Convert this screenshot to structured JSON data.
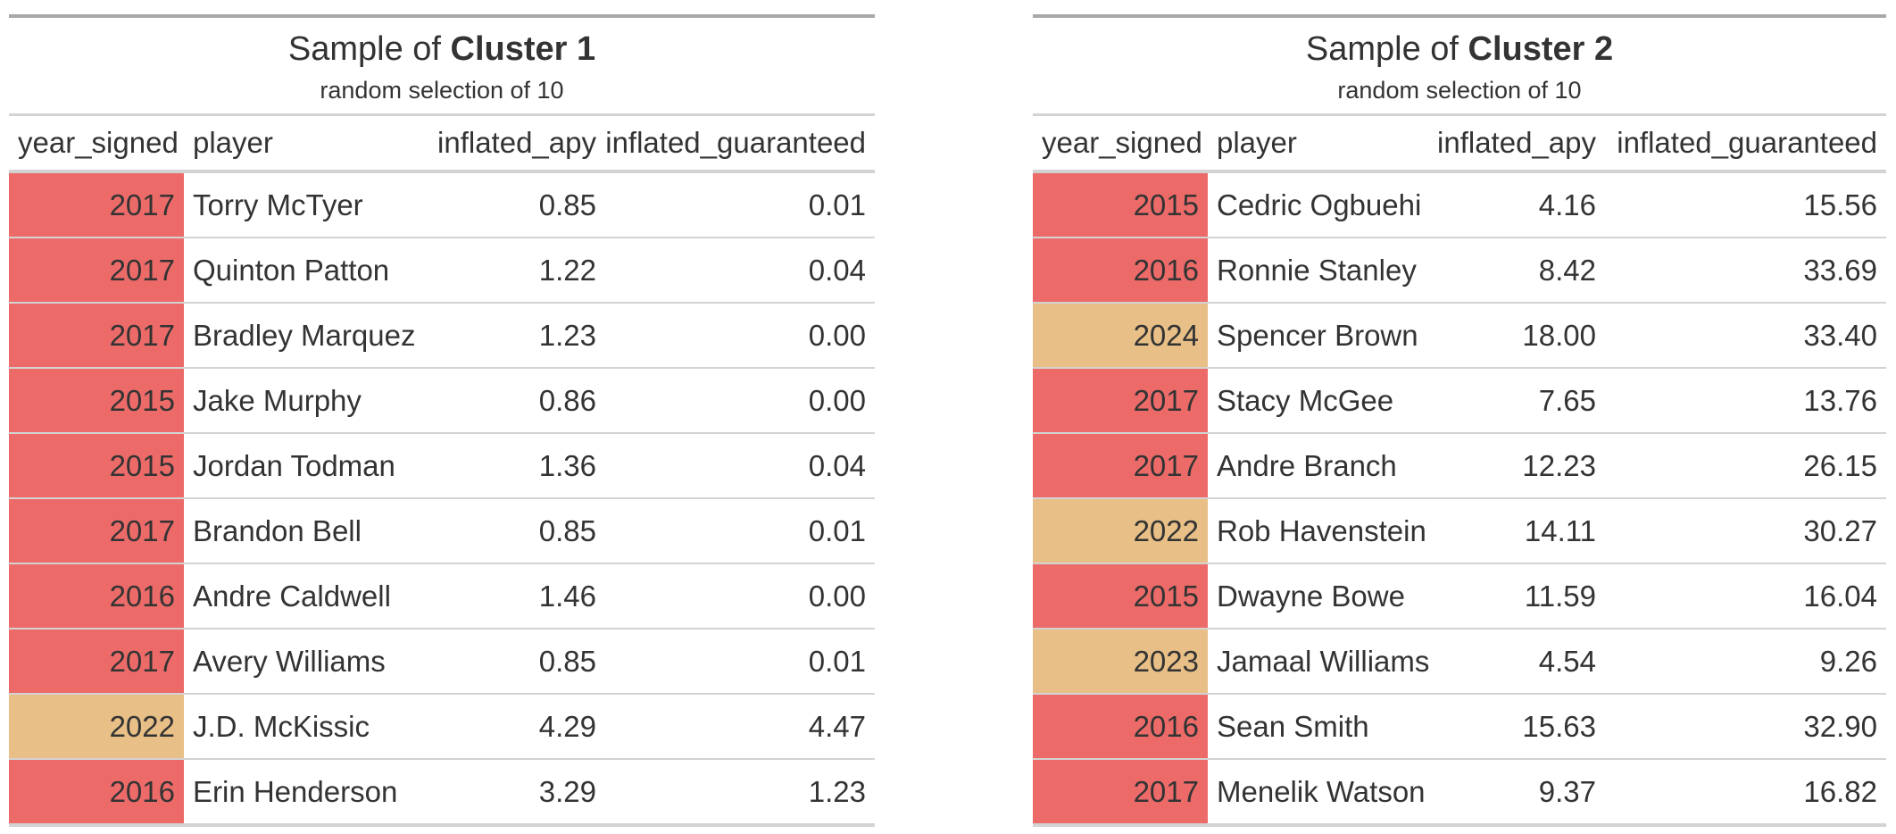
{
  "tables": [
    {
      "title_prefix": "Sample of ",
      "title_bold": "Cluster 1",
      "subtitle": "random selection of 10",
      "columns": [
        "year_signed",
        "player",
        "inflated_apy",
        "inflated_guaranteed"
      ],
      "rows": [
        {
          "year_signed": "2017",
          "player": "Torry McTyer",
          "inflated_apy": "0.85",
          "inflated_guaranteed": "0.01",
          "color": "#ec6b69"
        },
        {
          "year_signed": "2017",
          "player": "Quinton Patton",
          "inflated_apy": "1.22",
          "inflated_guaranteed": "0.04",
          "color": "#ec6b69"
        },
        {
          "year_signed": "2017",
          "player": "Bradley Marquez",
          "inflated_apy": "1.23",
          "inflated_guaranteed": "0.00",
          "color": "#ec6b69"
        },
        {
          "year_signed": "2015",
          "player": "Jake Murphy",
          "inflated_apy": "0.86",
          "inflated_guaranteed": "0.00",
          "color": "#ec6b69"
        },
        {
          "year_signed": "2015",
          "player": "Jordan Todman",
          "inflated_apy": "1.36",
          "inflated_guaranteed": "0.04",
          "color": "#ec6b69"
        },
        {
          "year_signed": "2017",
          "player": "Brandon Bell",
          "inflated_apy": "0.85",
          "inflated_guaranteed": "0.01",
          "color": "#ec6b69"
        },
        {
          "year_signed": "2016",
          "player": "Andre Caldwell",
          "inflated_apy": "1.46",
          "inflated_guaranteed": "0.00",
          "color": "#ec6b69"
        },
        {
          "year_signed": "2017",
          "player": "Avery Williams",
          "inflated_apy": "0.85",
          "inflated_guaranteed": "0.01",
          "color": "#ec6b69"
        },
        {
          "year_signed": "2022",
          "player": "J.D. McKissic",
          "inflated_apy": "4.29",
          "inflated_guaranteed": "4.47",
          "color": "#e8bf86"
        },
        {
          "year_signed": "2016",
          "player": "Erin Henderson",
          "inflated_apy": "3.29",
          "inflated_guaranteed": "1.23",
          "color": "#ec6b69"
        }
      ]
    },
    {
      "title_prefix": "Sample of ",
      "title_bold": "Cluster 2",
      "subtitle": "random selection of 10",
      "columns": [
        "year_signed",
        "player",
        "inflated_apy",
        "inflated_guaranteed"
      ],
      "rows": [
        {
          "year_signed": "2015",
          "player": "Cedric Ogbuehi",
          "inflated_apy": "4.16",
          "inflated_guaranteed": "15.56",
          "color": "#ec6b69"
        },
        {
          "year_signed": "2016",
          "player": "Ronnie Stanley",
          "inflated_apy": "8.42",
          "inflated_guaranteed": "33.69",
          "color": "#ec6b69"
        },
        {
          "year_signed": "2024",
          "player": "Spencer Brown",
          "inflated_apy": "18.00",
          "inflated_guaranteed": "33.40",
          "color": "#e8bf86"
        },
        {
          "year_signed": "2017",
          "player": "Stacy McGee",
          "inflated_apy": "7.65",
          "inflated_guaranteed": "13.76",
          "color": "#ec6b69"
        },
        {
          "year_signed": "2017",
          "player": "Andre Branch",
          "inflated_apy": "12.23",
          "inflated_guaranteed": "26.15",
          "color": "#ec6b69"
        },
        {
          "year_signed": "2022",
          "player": "Rob Havenstein",
          "inflated_apy": "14.11",
          "inflated_guaranteed": "30.27",
          "color": "#e8bf86"
        },
        {
          "year_signed": "2015",
          "player": "Dwayne Bowe",
          "inflated_apy": "11.59",
          "inflated_guaranteed": "16.04",
          "color": "#ec6b69"
        },
        {
          "year_signed": "2023",
          "player": "Jamaal Williams",
          "inflated_apy": "4.54",
          "inflated_guaranteed": "9.26",
          "color": "#e8bf86"
        },
        {
          "year_signed": "2016",
          "player": "Sean Smith",
          "inflated_apy": "15.63",
          "inflated_guaranteed": "32.90",
          "color": "#ec6b69"
        },
        {
          "year_signed": "2017",
          "player": "Menelik Watson",
          "inflated_apy": "9.37",
          "inflated_guaranteed": "16.82",
          "color": "#ec6b69"
        }
      ]
    }
  ]
}
